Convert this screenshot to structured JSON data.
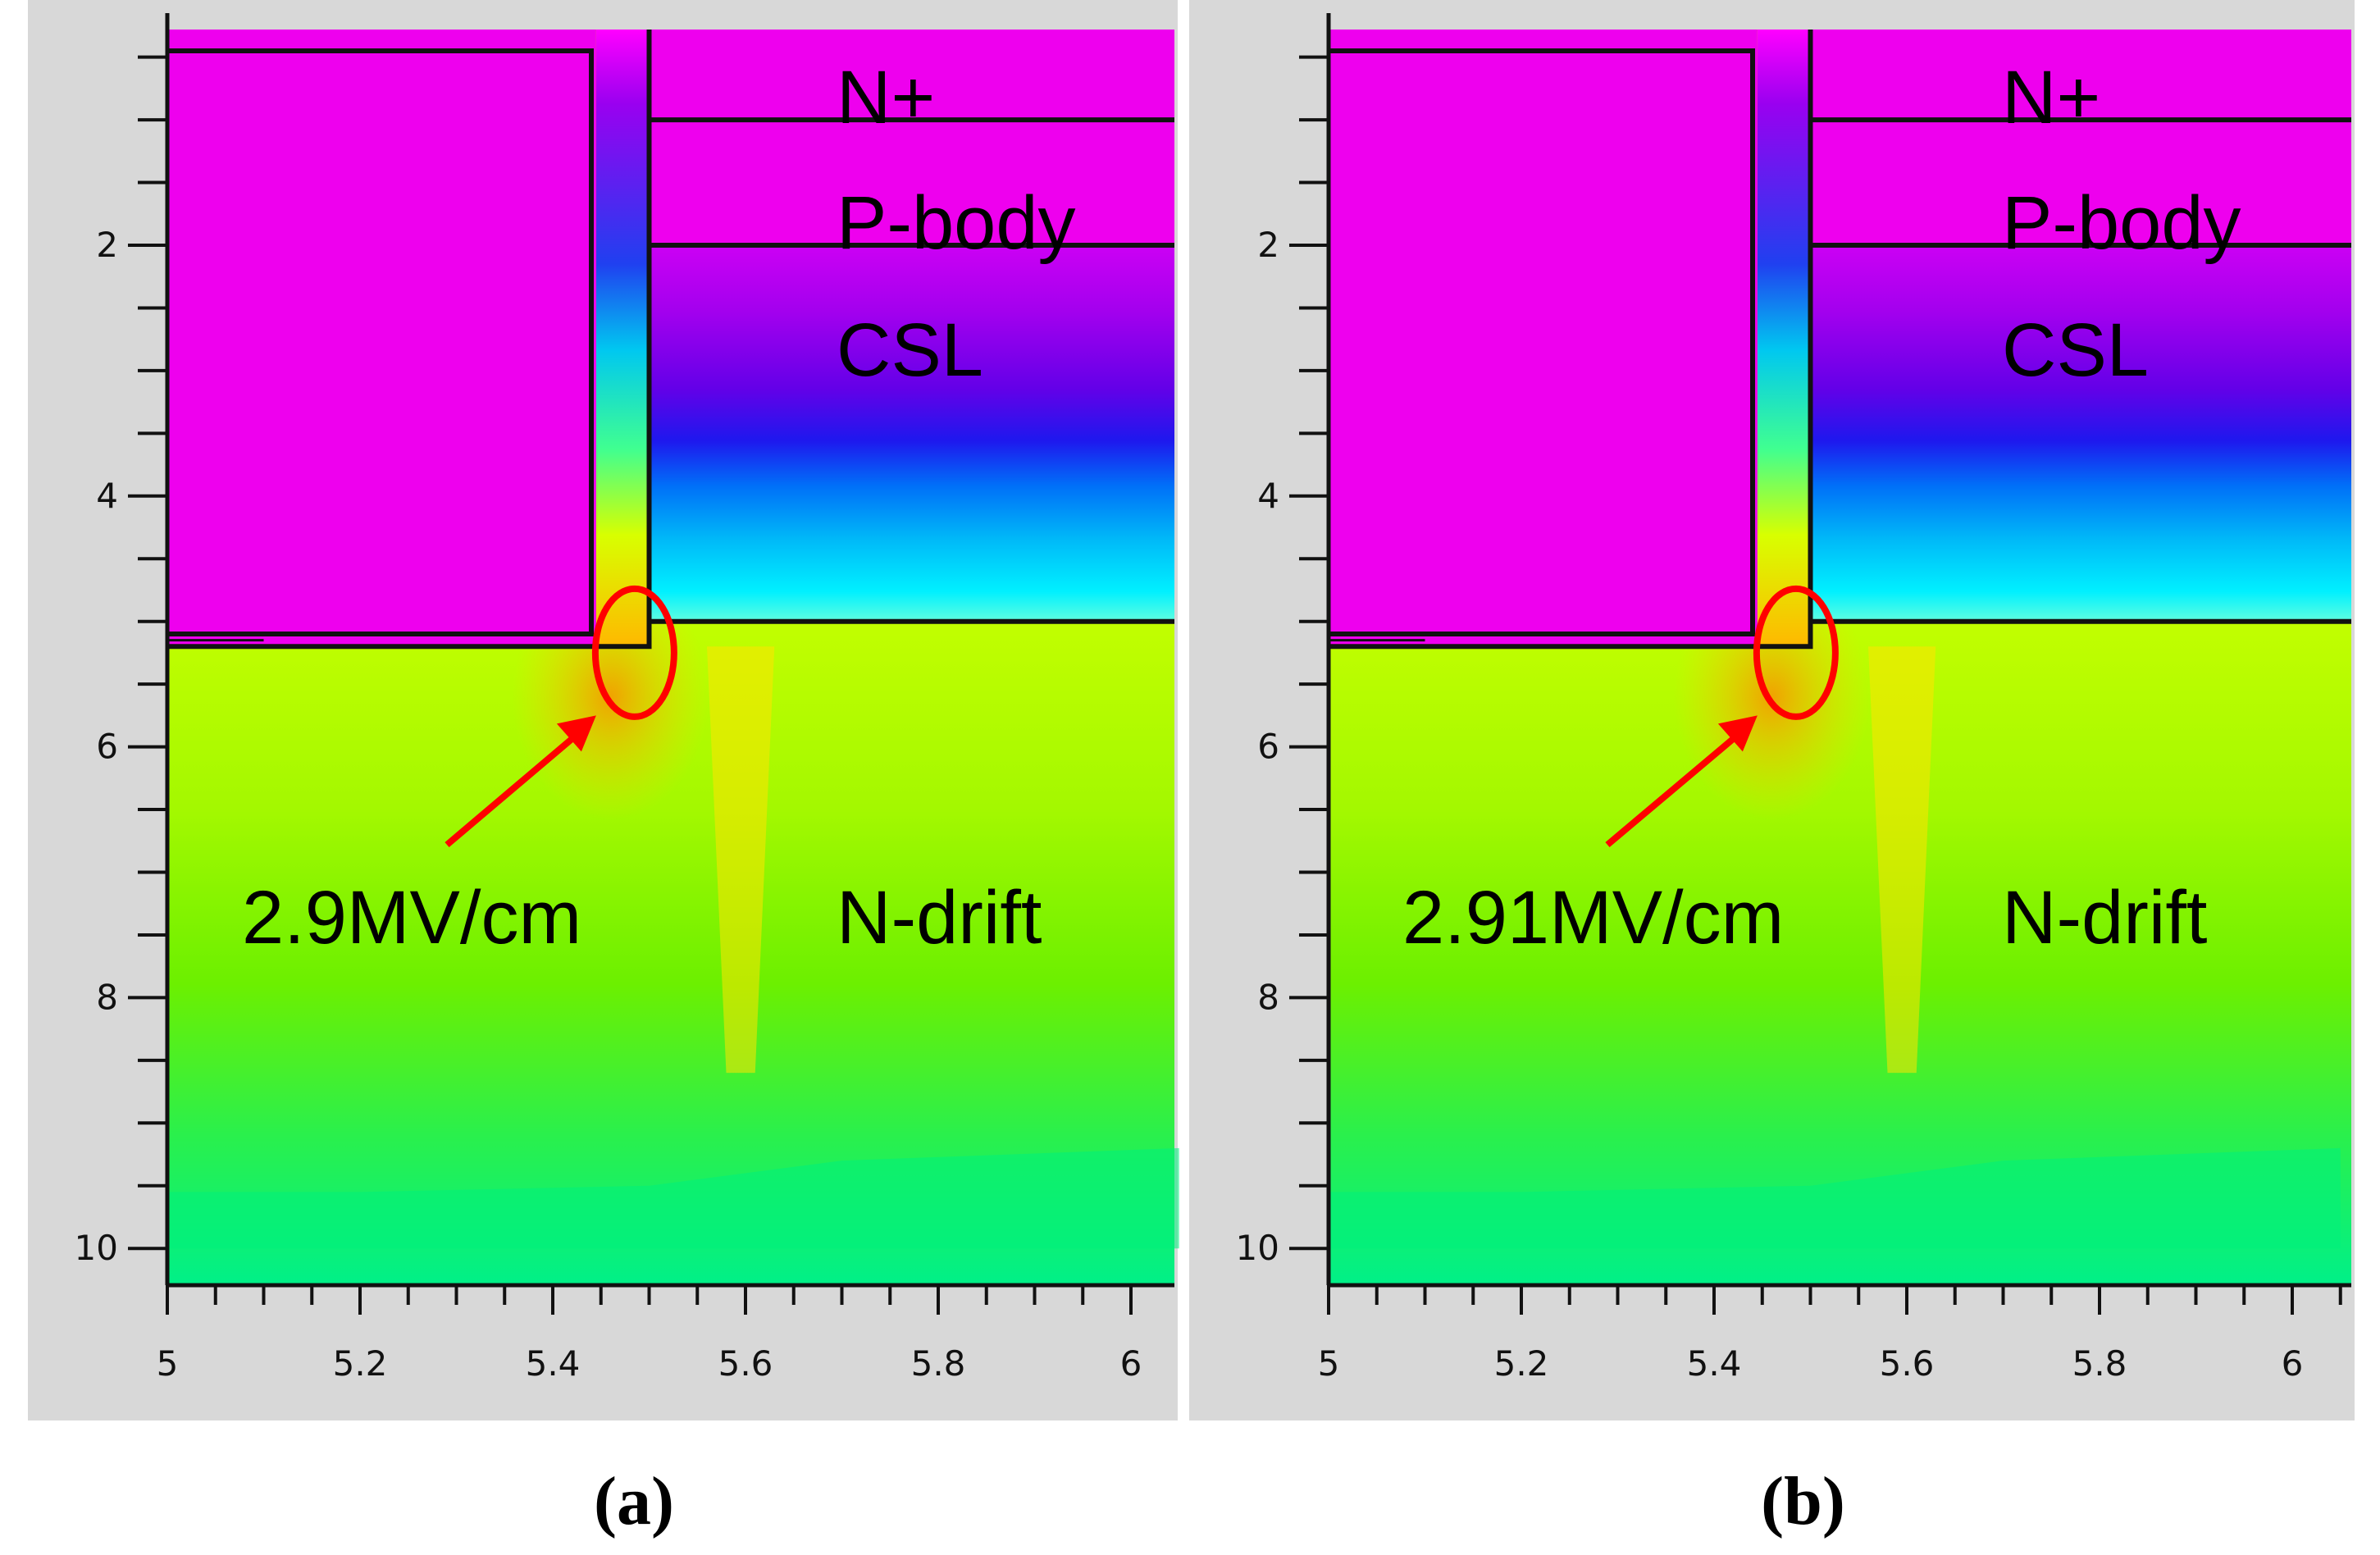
{
  "colors": {
    "frame_bg": "#d8d8d8",
    "oxide_magenta": "#ee00ee",
    "outline": "#111111",
    "annotation_red": "#ff0000"
  },
  "panels": [
    {
      "caption": "(a)",
      "peak_field_label": "2.9MV/cm",
      "region_labels": {
        "n_plus": "N+",
        "p_body": "P-body",
        "csl": "CSL",
        "n_drift": "N-drift"
      },
      "x_ticks": [
        "5",
        "5.2",
        "5.4",
        "5.6",
        "5.8",
        "6"
      ],
      "y_ticks": [
        "2",
        "4",
        "6",
        "8",
        "10"
      ]
    },
    {
      "caption": "(b)",
      "peak_field_label": "2.91MV/cm",
      "region_labels": {
        "n_plus": "N+",
        "p_body": "P-body",
        "csl": "CSL",
        "n_drift": "N-drift"
      },
      "x_ticks": [
        "5",
        "5.2",
        "5.4",
        "5.6",
        "5.8",
        "6"
      ],
      "y_ticks": [
        "2",
        "4",
        "6",
        "8",
        "10"
      ]
    }
  ]
}
